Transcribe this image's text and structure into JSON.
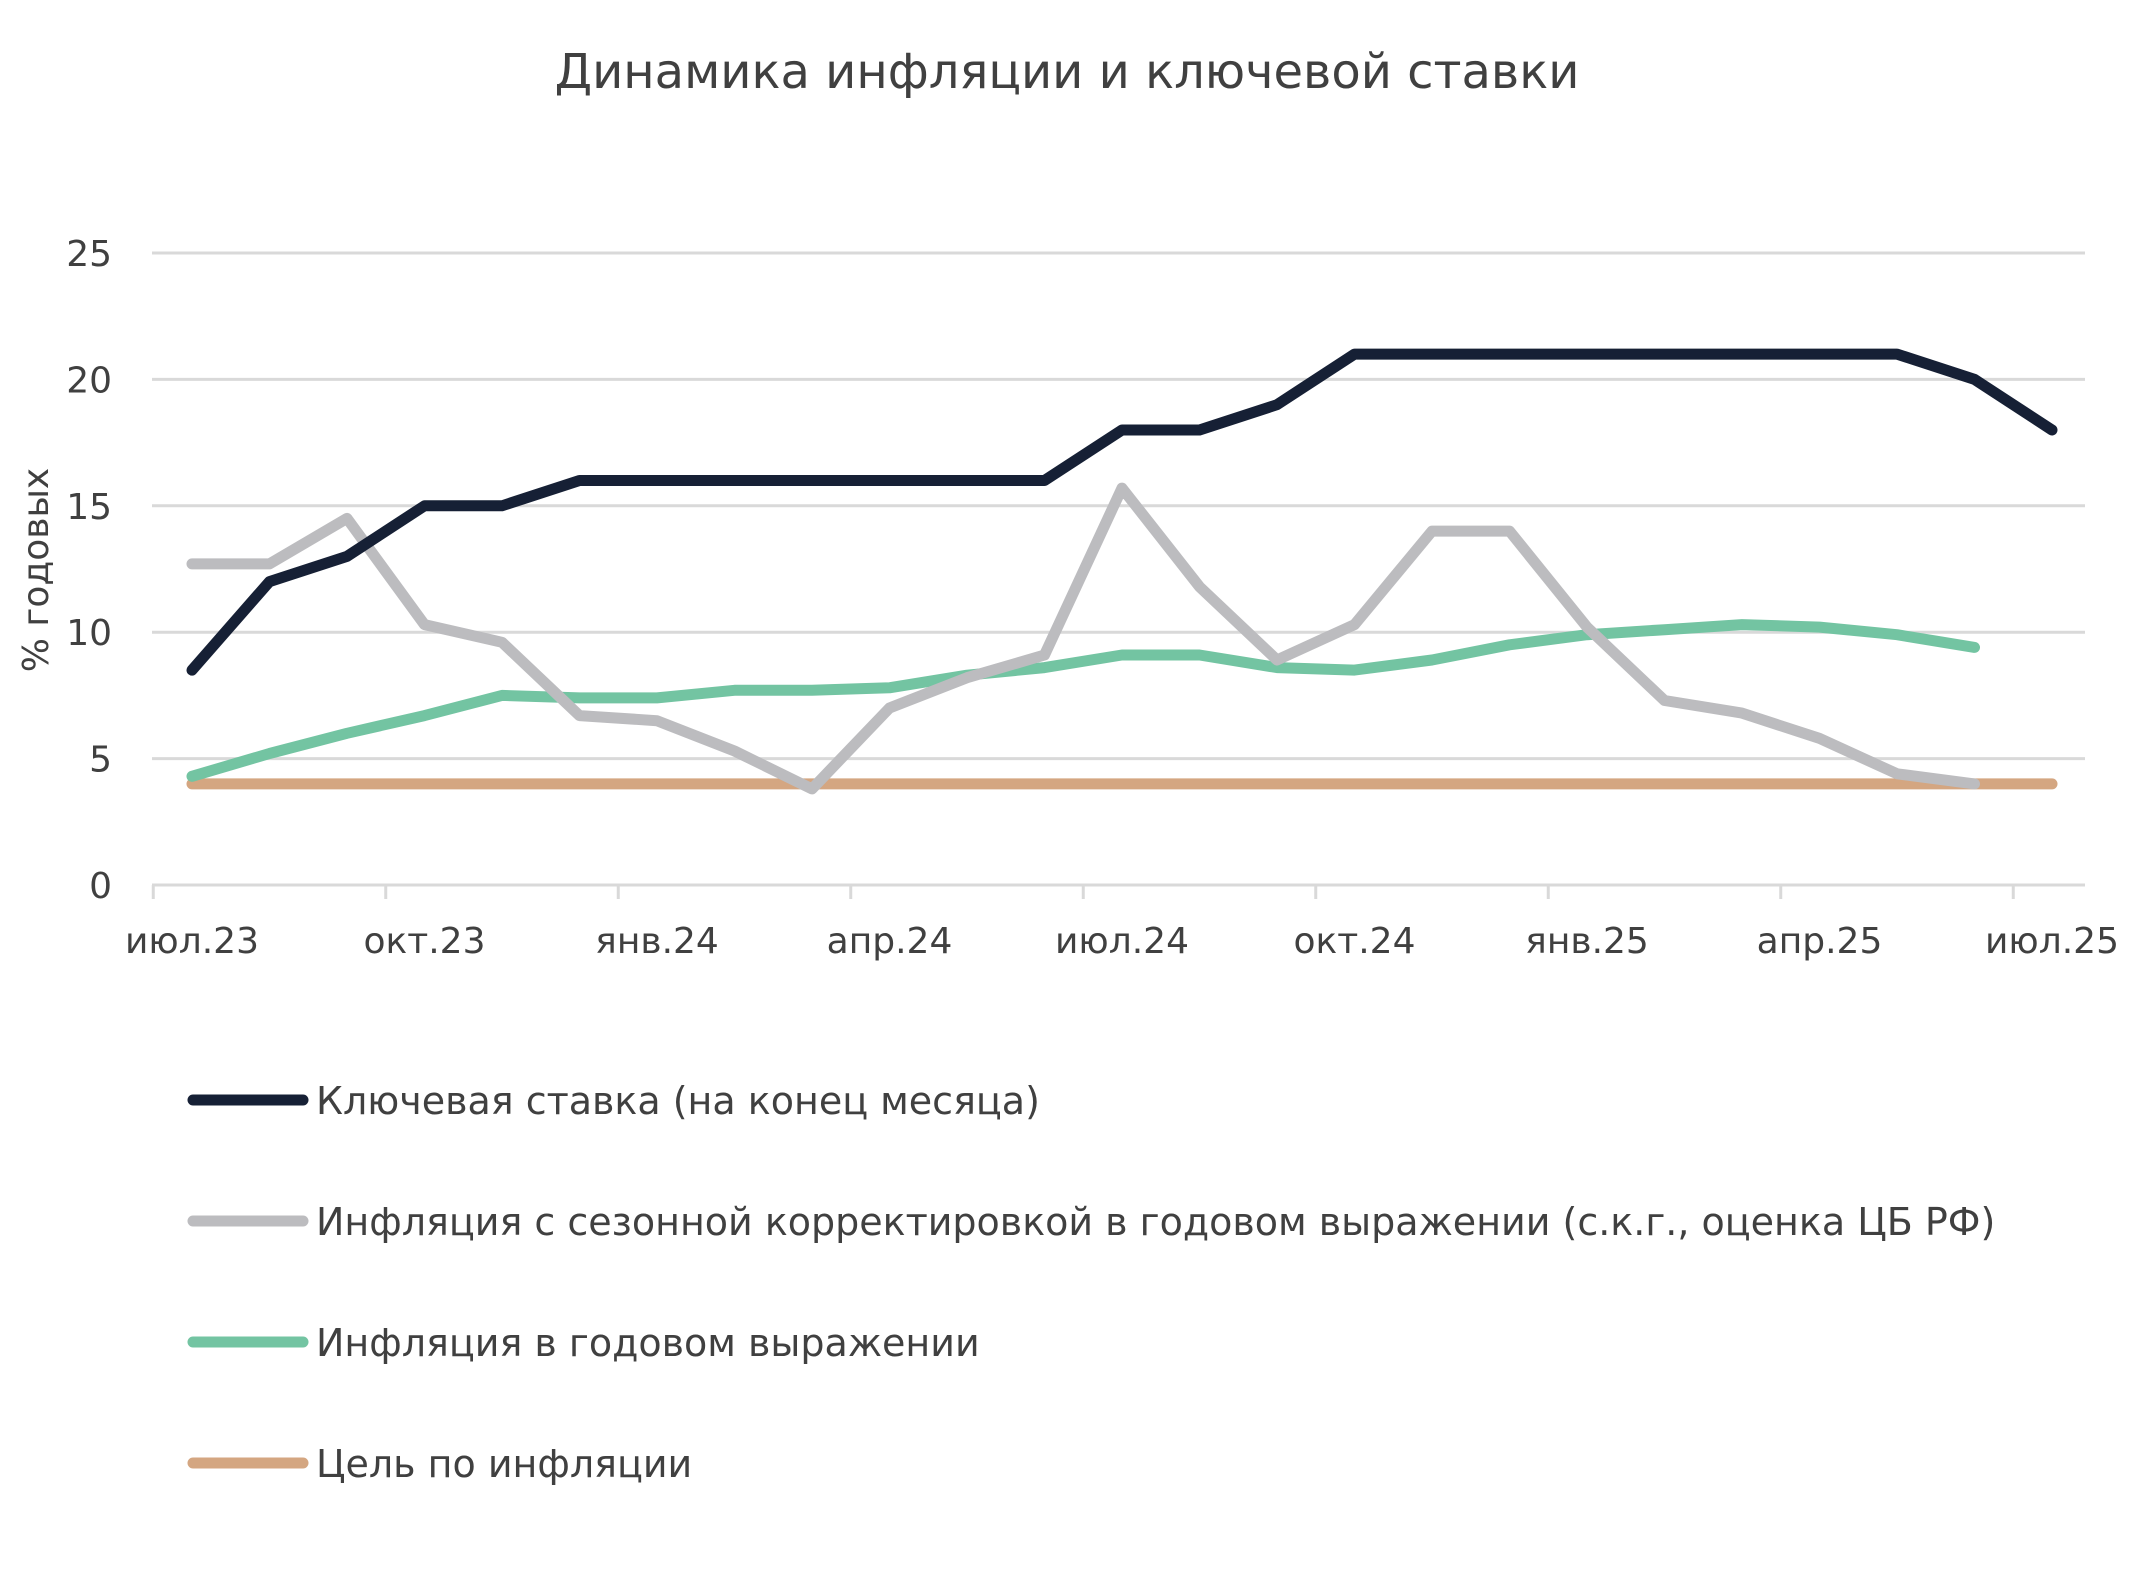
{
  "chart_data": {
    "type": "line",
    "title": "Динамика инфляции и ключевой ставки",
    "xlabel": "",
    "ylabel": "% годовых",
    "ylim": [
      0,
      25
    ],
    "yticks": [
      "0",
      "5",
      "10",
      "15",
      "20",
      "25"
    ],
    "xticks": [
      "июл.23",
      "окт.23",
      "янв.24",
      "апр.24",
      "июл.24",
      "окт.24",
      "янв.25",
      "апр.25",
      "июл.25"
    ],
    "grid": "horizontal",
    "legend_position": "bottom",
    "x": [
      "июл.23",
      "авг.23",
      "сен.23",
      "окт.23",
      "ноя.23",
      "дек.23",
      "янв.24",
      "фев.24",
      "мар.24",
      "апр.24",
      "май.24",
      "июн.24",
      "июл.24",
      "авг.24",
      "сен.24",
      "окт.24",
      "ноя.24",
      "дек.24",
      "янв.25",
      "фев.25",
      "мар.25",
      "апр.25",
      "май.25",
      "июн.25",
      "июл.25"
    ],
    "series": [
      {
        "name": "Ключевая ставка (на конец месяца)",
        "color": "#162035",
        "values": [
          8.5,
          12,
          13,
          15,
          15,
          16,
          16,
          16,
          16,
          16,
          16,
          16,
          18,
          18,
          19,
          21,
          21,
          21,
          21,
          21,
          21,
          21,
          21,
          20,
          18
        ]
      },
      {
        "name": "Инфляция с сезонной корректировкой в годовом выражении (с.к.г., оценка ЦБ РФ)",
        "color": "#bcbcbf",
        "values": [
          12.7,
          12.7,
          14.5,
          10.3,
          9.6,
          6.7,
          6.5,
          5.3,
          3.8,
          7.0,
          8.2,
          9.1,
          15.7,
          11.8,
          8.9,
          10.3,
          14.0,
          14.0,
          10.2,
          7.3,
          6.8,
          5.8,
          4.4,
          4.0,
          null
        ]
      },
      {
        "name": "Инфляция в годовом выражении",
        "color": "#73c4a2",
        "values": [
          4.3,
          5.2,
          6.0,
          6.7,
          7.5,
          7.4,
          7.4,
          7.7,
          7.7,
          7.8,
          8.3,
          8.6,
          9.1,
          9.1,
          8.6,
          8.5,
          8.9,
          9.5,
          9.9,
          10.1,
          10.3,
          10.2,
          9.9,
          9.4,
          null
        ]
      },
      {
        "name": "Цель по инфляции",
        "color": "#d4a681",
        "values": [
          4,
          4,
          4,
          4,
          4,
          4,
          4,
          4,
          4,
          4,
          4,
          4,
          4,
          4,
          4,
          4,
          4,
          4,
          4,
          4,
          4,
          4,
          4,
          4,
          4
        ]
      }
    ]
  }
}
